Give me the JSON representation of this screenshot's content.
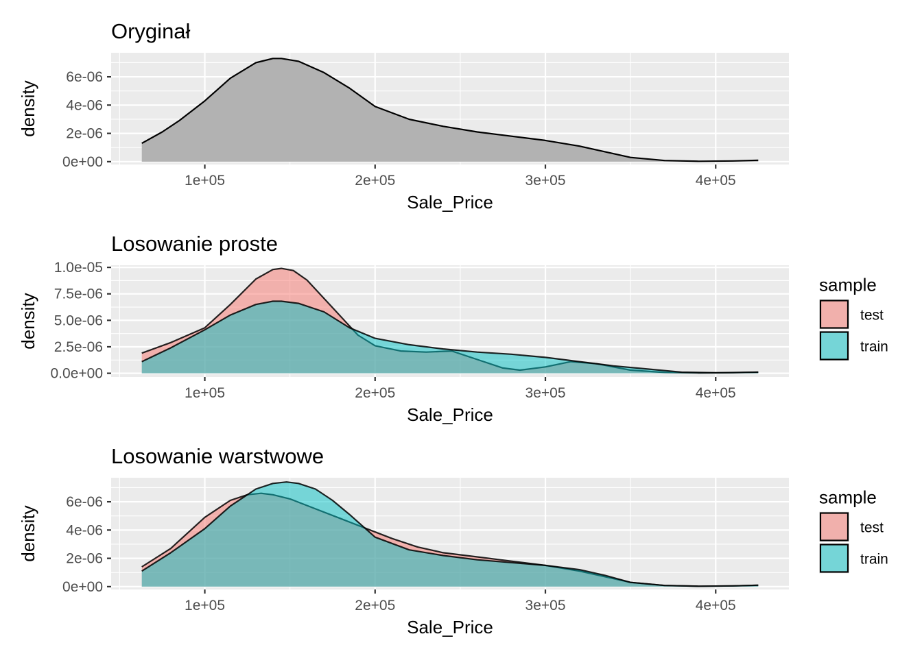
{
  "colors": {
    "panel_bg": "#EBEBEB",
    "grid": "#FFFFFF",
    "original_fill": "#B2B2B2",
    "test": "#F8766D",
    "train": "#00BFC4",
    "outline": "#000000",
    "tick_text": "#4D4D4D"
  },
  "chart_data": [
    {
      "type": "area",
      "title": "Oryginał",
      "xlabel": "Sale_Price",
      "ylabel": "density",
      "xlim": [
        45000,
        443000
      ],
      "ylim": [
        -2e-07,
        7.7e-06
      ],
      "x_ticks": [
        100000,
        200000,
        300000,
        400000
      ],
      "x_tick_labels": [
        "1e+05",
        "2e+05",
        "3e+05",
        "4e+05"
      ],
      "y_ticks": [
        0,
        2e-06,
        4e-06,
        6e-06
      ],
      "y_tick_labels": [
        "0e+00",
        "2e-06",
        "4e-06",
        "6e-06"
      ],
      "grid": true,
      "legend": null,
      "series": [
        {
          "fill": "#B2B2B2",
          "x": [
            63000,
            75000,
            85000,
            100000,
            115000,
            130000,
            140000,
            145000,
            155000,
            170000,
            185000,
            200000,
            220000,
            240000,
            260000,
            280000,
            300000,
            320000,
            335000,
            350000,
            370000,
            390000,
            410000,
            425000
          ],
          "y": [
            1.3e-06,
            2.1e-06,
            2.9e-06,
            4.3e-06,
            5.9e-06,
            7e-06,
            7.3e-06,
            7.3e-06,
            7.1e-06,
            6.3e-06,
            5.2e-06,
            3.9e-06,
            3e-06,
            2.5e-06,
            2.1e-06,
            1.8e-06,
            1.5e-06,
            1.1e-06,
            7e-07,
            3e-07,
            8e-08,
            3e-08,
            5e-08,
            1e-07
          ]
        }
      ]
    },
    {
      "type": "area",
      "title": "Losowanie proste",
      "xlabel": "Sale_Price",
      "ylabel": "density",
      "xlim": [
        45000,
        443000
      ],
      "ylim": [
        -3.5e-07,
        1.02e-05
      ],
      "x_ticks": [
        100000,
        200000,
        300000,
        400000
      ],
      "x_tick_labels": [
        "1e+05",
        "2e+05",
        "3e+05",
        "4e+05"
      ],
      "y_ticks": [
        0,
        2.5e-06,
        5e-06,
        7.5e-06,
        1e-05
      ],
      "y_tick_labels": [
        "0.0e+00",
        "2.5e-06",
        "5.0e-06",
        "7.5e-06",
        "1.0e-05"
      ],
      "grid": true,
      "legend": "right",
      "legend_title": "sample",
      "series": [
        {
          "name": "test",
          "fill": "#F8766D",
          "x": [
            63000,
            80000,
            100000,
            115000,
            130000,
            140000,
            145000,
            152000,
            160000,
            175000,
            190000,
            200000,
            215000,
            230000,
            245000,
            260000,
            275000,
            285000,
            300000,
            315000,
            330000,
            350000,
            370000,
            390000,
            410000,
            425000
          ],
          "y": [
            1.9e-06,
            2.9e-06,
            4.3e-06,
            6.5e-06,
            8.9e-06,
            9.8e-06,
            9.9e-06,
            9.7e-06,
            8.8e-06,
            6.2e-06,
            3.6e-06,
            2.6e-06,
            2.1e-06,
            2e-06,
            2.1e-06,
            1.3e-06,
            5e-07,
            3e-07,
            6e-07,
            1.1e-06,
            9e-07,
            3e-07,
            8e-08,
            3e-08,
            5e-08,
            1e-07
          ]
        },
        {
          "name": "train",
          "fill": "#00BFC4",
          "x": [
            63000,
            80000,
            100000,
            115000,
            130000,
            140000,
            145000,
            155000,
            170000,
            185000,
            200000,
            220000,
            240000,
            260000,
            280000,
            300000,
            320000,
            340000,
            360000,
            380000,
            400000,
            425000
          ],
          "y": [
            1.1e-06,
            2.4e-06,
            4.1e-06,
            5.5e-06,
            6.5e-06,
            6.8e-06,
            6.8e-06,
            6.6e-06,
            5.8e-06,
            4.3e-06,
            3.3e-06,
            2.7e-06,
            2.3e-06,
            2e-06,
            1.8e-06,
            1.5e-06,
            1.1e-06,
            7e-07,
            4e-07,
            1e-07,
            5e-08,
            1e-07
          ]
        }
      ]
    },
    {
      "type": "area",
      "title": "Losowanie warstwowe",
      "xlabel": "Sale_Price",
      "ylabel": "density",
      "xlim": [
        45000,
        443000
      ],
      "ylim": [
        -2e-07,
        7.7e-06
      ],
      "x_ticks": [
        100000,
        200000,
        300000,
        400000
      ],
      "x_tick_labels": [
        "1e+05",
        "2e+05",
        "3e+05",
        "4e+05"
      ],
      "y_ticks": [
        0,
        2e-06,
        4e-06,
        6e-06
      ],
      "y_tick_labels": [
        "0e+00",
        "2e-06",
        "4e-06",
        "6e-06"
      ],
      "grid": true,
      "legend": "right",
      "legend_title": "sample",
      "series": [
        {
          "name": "test",
          "fill": "#F8766D",
          "x": [
            63000,
            80000,
            100000,
            115000,
            125000,
            133000,
            140000,
            150000,
            165000,
            180000,
            195000,
            210000,
            225000,
            240000,
            260000,
            280000,
            300000,
            320000,
            335000,
            350000,
            370000,
            390000,
            410000,
            425000
          ],
          "y": [
            1.4e-06,
            2.7e-06,
            4.9e-06,
            6.1e-06,
            6.5e-06,
            6.6e-06,
            6.5e-06,
            6.2e-06,
            5.5e-06,
            4.8e-06,
            4.1e-06,
            3.4e-06,
            2.8e-06,
            2.4e-06,
            2.1e-06,
            1.8e-06,
            1.5e-06,
            1.1e-06,
            7e-07,
            3e-07,
            8e-08,
            3e-08,
            5e-08,
            1e-07
          ]
        },
        {
          "name": "train",
          "fill": "#00BFC4",
          "x": [
            63000,
            80000,
            100000,
            115000,
            130000,
            140000,
            148000,
            155000,
            165000,
            175000,
            185000,
            200000,
            220000,
            240000,
            260000,
            280000,
            300000,
            320000,
            335000,
            350000,
            370000,
            390000,
            410000,
            425000
          ],
          "y": [
            1.1e-06,
            2.4e-06,
            4.1e-06,
            5.7e-06,
            6.9e-06,
            7.3e-06,
            7.4e-06,
            7.3e-06,
            6.9e-06,
            6.1e-06,
            5.1e-06,
            3.5e-06,
            2.6e-06,
            2.2e-06,
            1.9e-06,
            1.7e-06,
            1.5e-06,
            1.2e-06,
            8e-07,
            3e-07,
            8e-08,
            3e-08,
            5e-08,
            1e-07
          ]
        }
      ]
    }
  ]
}
